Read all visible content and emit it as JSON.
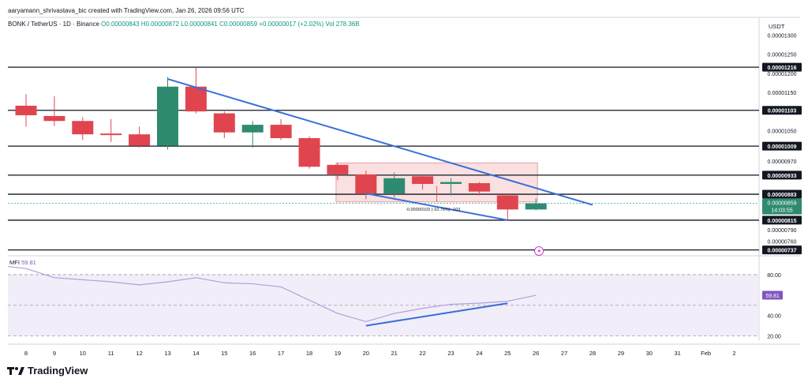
{
  "header": {
    "attribution": "aaryamann_shrivastava_bic created with TradingView.com, Jan 26, 2026 09:56 UTC",
    "symbol": "BONK / TetherUS · 1D · Binance",
    "ohlc_text": "O0.00000843 H0.00000872 L0.00000841 C0.00000859 +0.00000017 (+2.02%)",
    "volume_text": "Vol 278.36B"
  },
  "currency": "USDT",
  "price_ticks": [
    "0.00001300",
    "0.00001250",
    "0.00001200",
    "0.00001150",
    "0.00001050",
    "0.00000970",
    "0.00000790",
    "0.00000760"
  ],
  "key_levels": [
    "0.00001216",
    "0.00001103",
    "0.00001009",
    "0.00000933",
    "0.00000883",
    "0.00000815",
    "0.00000737"
  ],
  "current_price": {
    "value": "0.00000859",
    "countdown": "14:03:55"
  },
  "measure_label": "-0.00000103 (-10.76%) -103",
  "mfi": {
    "label": "MFI",
    "value": "59.81",
    "ticks": [
      "80.00",
      "40.00",
      "20.00"
    ]
  },
  "x_ticks": [
    "8",
    "9",
    "10",
    "11",
    "12",
    "13",
    "14",
    "15",
    "16",
    "17",
    "18",
    "19",
    "20",
    "21",
    "22",
    "23",
    "24",
    "25",
    "26",
    "27",
    "28",
    "29",
    "30",
    "31",
    "Feb",
    "2"
  ],
  "brand": "TradingView",
  "colors": {
    "up": "#26a69a",
    "up_body": "#2e8b70",
    "down": "#e0454f",
    "trend": "#3a6fd8",
    "mfi": "#7e57c2",
    "zone": "#f5c6c6"
  },
  "chart_data": [
    {
      "type": "candlestick",
      "title": "BONK / TetherUS · 1D · Binance",
      "ylabel": "USDT",
      "x": [
        "8",
        "9",
        "10",
        "11",
        "12",
        "13",
        "14",
        "15",
        "16",
        "17",
        "18",
        "19",
        "20",
        "21",
        "22",
        "23",
        "24",
        "25",
        "26"
      ],
      "ohlc": [
        [
          1.115e-05,
          1.145e-05,
          1.06e-05,
          1.09e-05
        ],
        [
          1.088e-05,
          1.14e-05,
          1.062e-05,
          1.075e-05
        ],
        [
          1.075e-05,
          1.085e-05,
          1.025e-05,
          1.04e-05
        ],
        [
          1.042e-05,
          1.08e-05,
          1.02e-05,
          1.038e-05
        ],
        [
          1.04e-05,
          1.06e-05,
          1.005e-05,
          1.01e-05
        ],
        [
          1.01e-05,
          1.19e-05,
          1e-05,
          1.165e-05
        ],
        [
          1.165e-05,
          1.215e-05,
          1.095e-05,
          1.1e-05
        ],
        [
          1.095e-05,
          1.1e-05,
          1.03e-05,
          1.045e-05
        ],
        [
          1.045e-05,
          1.075e-05,
          1.005e-05,
          1.065e-05
        ],
        [
          1.065e-05,
          1.08e-05,
          1.025e-05,
          1.03e-05
        ],
        [
          1.03e-05,
          1.035e-05,
          9.5e-06,
          9.55e-06
        ],
        [
          9.6e-06,
          9.65e-06,
          9.2e-06,
          9.35e-06
        ],
        [
          9.35e-06,
          9.45e-06,
          8.7e-06,
          8.85e-06
        ],
        [
          8.85e-06,
          9.4e-06,
          8.75e-06,
          9.25e-06
        ],
        [
          9.3e-06,
          9.35e-06,
          8.95e-06,
          9.1e-06
        ],
        [
          9.1e-06,
          9.25e-06,
          8.8e-06,
          9.15e-06
        ],
        [
          9.12e-06,
          9.15e-06,
          8.8e-06,
          8.9e-06
        ],
        [
          8.8e-06,
          8.85e-06,
          8.15e-06,
          8.43e-06
        ],
        [
          8.43e-06,
          8.72e-06,
          8.41e-06,
          8.59e-06
        ]
      ],
      "ylim": [
        7.3e-06,
        1.33e-05
      ],
      "horizontal_levels": [
        1.216e-05,
        1.103e-05,
        1.009e-05,
        9.33e-06,
        8.83e-06,
        8.15e-06,
        7.37e-06
      ],
      "trendlines": [
        {
          "from": [
            13,
            1.185e-05
          ],
          "to": [
            28,
            8.55e-06
          ]
        },
        {
          "from": [
            20,
            8.85e-06
          ],
          "to": [
            25,
            8.15e-06
          ]
        }
      ],
      "zone": {
        "x_from": 19,
        "x_to": 26,
        "y_from": 9.65e-06,
        "y_to": 8.63e-06
      },
      "current_price": 8.59e-06
    },
    {
      "type": "line",
      "title": "MFI",
      "x": [
        "8",
        "9",
        "10",
        "11",
        "12",
        "13",
        "14",
        "15",
        "16",
        "17",
        "18",
        "19",
        "20",
        "21",
        "22",
        "23",
        "24",
        "25",
        "26"
      ],
      "values": [
        86,
        77,
        75,
        73,
        70,
        73,
        77,
        72,
        71,
        68,
        55,
        42,
        34,
        42,
        47,
        51,
        52,
        54,
        59.81
      ],
      "ylim": [
        15,
        90
      ],
      "band": [
        20,
        80
      ],
      "trendline": {
        "from": [
          20,
          30
        ],
        "to": [
          25,
          52
        ]
      }
    }
  ]
}
